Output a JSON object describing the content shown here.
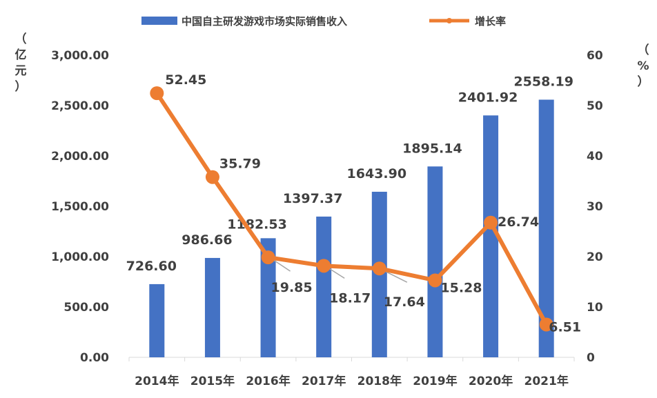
{
  "chart_data": {
    "type": "bar",
    "categories": [
      "2014年",
      "2015年",
      "2016年",
      "2017年",
      "2018年",
      "2019年",
      "2020年",
      "2021年"
    ],
    "series": [
      {
        "name": "中国自主研发游戏市场实际销售收入",
        "kind": "bar",
        "axis": "left",
        "color": "#4472C4",
        "values": [
          726.6,
          986.66,
          1182.53,
          1397.37,
          1643.9,
          1895.14,
          2401.92,
          2558.19
        ],
        "labels": [
          "726.60",
          "986.66",
          "1182.53",
          "1397.37",
          "1643.90",
          "1895.14",
          "2401.92",
          "2558.19"
        ]
      },
      {
        "name": "增长率",
        "kind": "line",
        "axis": "right",
        "color": "#ED7D31",
        "values": [
          52.45,
          35.79,
          19.85,
          18.17,
          17.64,
          15.28,
          26.74,
          6.51
        ],
        "labels": [
          "52.45",
          "35.79",
          "19.85",
          "18.17",
          "17.64",
          "15.28",
          "26.74",
          "6.51"
        ]
      }
    ],
    "y_left": {
      "label": "（亿元）",
      "label_chars": [
        "（",
        "亿",
        "元",
        "）"
      ],
      "ylim": [
        0,
        3000
      ],
      "ticks": [
        {
          "value": 0,
          "label": "0.00"
        },
        {
          "value": 500,
          "label": "500.00"
        },
        {
          "value": 1000,
          "label": "1,000.00"
        },
        {
          "value": 1500,
          "label": "1,500.00"
        },
        {
          "value": 2000,
          "label": "2,000.00"
        },
        {
          "value": 2500,
          "label": "2,500.00"
        },
        {
          "value": 3000,
          "label": "3,000.00"
        }
      ]
    },
    "y_right": {
      "label": "（%）",
      "label_chars": [
        "（",
        "%",
        "）"
      ],
      "ylim": [
        0,
        60
      ],
      "ticks": [
        {
          "value": 0,
          "label": "0"
        },
        {
          "value": 10,
          "label": "10"
        },
        {
          "value": 20,
          "label": "20"
        },
        {
          "value": 30,
          "label": "30"
        },
        {
          "value": 40,
          "label": "40"
        },
        {
          "value": 50,
          "label": "50"
        },
        {
          "value": 60,
          "label": "60"
        }
      ]
    },
    "legend_position": "top-center",
    "grid": false
  }
}
